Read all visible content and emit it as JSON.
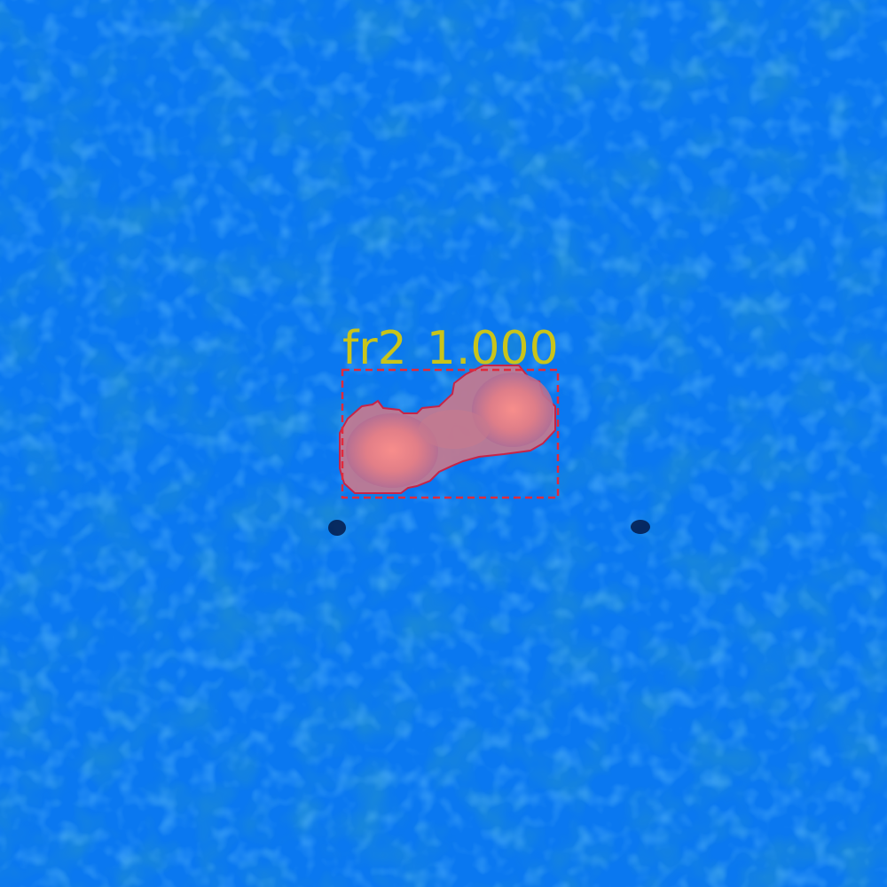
{
  "detection": {
    "class_name": "fr2",
    "score": "1.000"
  },
  "colors": {
    "background": "#0a78f0",
    "noise_dark": "#0a3a8a",
    "noise_light": "#2a90ff",
    "mask_fill": "#f07a88",
    "mask_edge": "#d02040",
    "box_stroke": "#e02a3c",
    "label_text": "#c9c41a"
  }
}
